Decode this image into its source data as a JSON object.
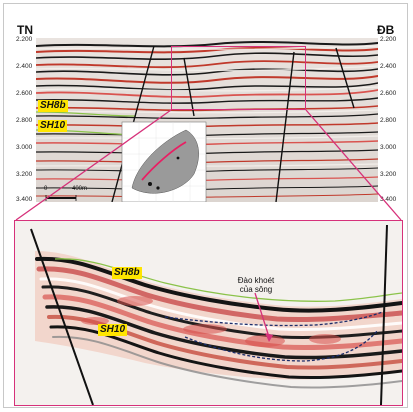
{
  "header": {
    "left_label": "TN",
    "right_label": "ĐB"
  },
  "y_ticks": [
    "2.200",
    "2.400",
    "2.600",
    "2.800",
    "3.000",
    "3.200",
    "3.400"
  ],
  "horizons": {
    "upper": "SH8b",
    "lower": "SH10"
  },
  "scale_bar": {
    "start": "0",
    "end": "400m"
  },
  "annotation": {
    "line1": "Đào khoét",
    "line2": "của sông"
  },
  "colors": {
    "highlight": "#d6317a",
    "horizon_label_bg": "#ffe500",
    "horizon_line": "#8bc34a"
  }
}
